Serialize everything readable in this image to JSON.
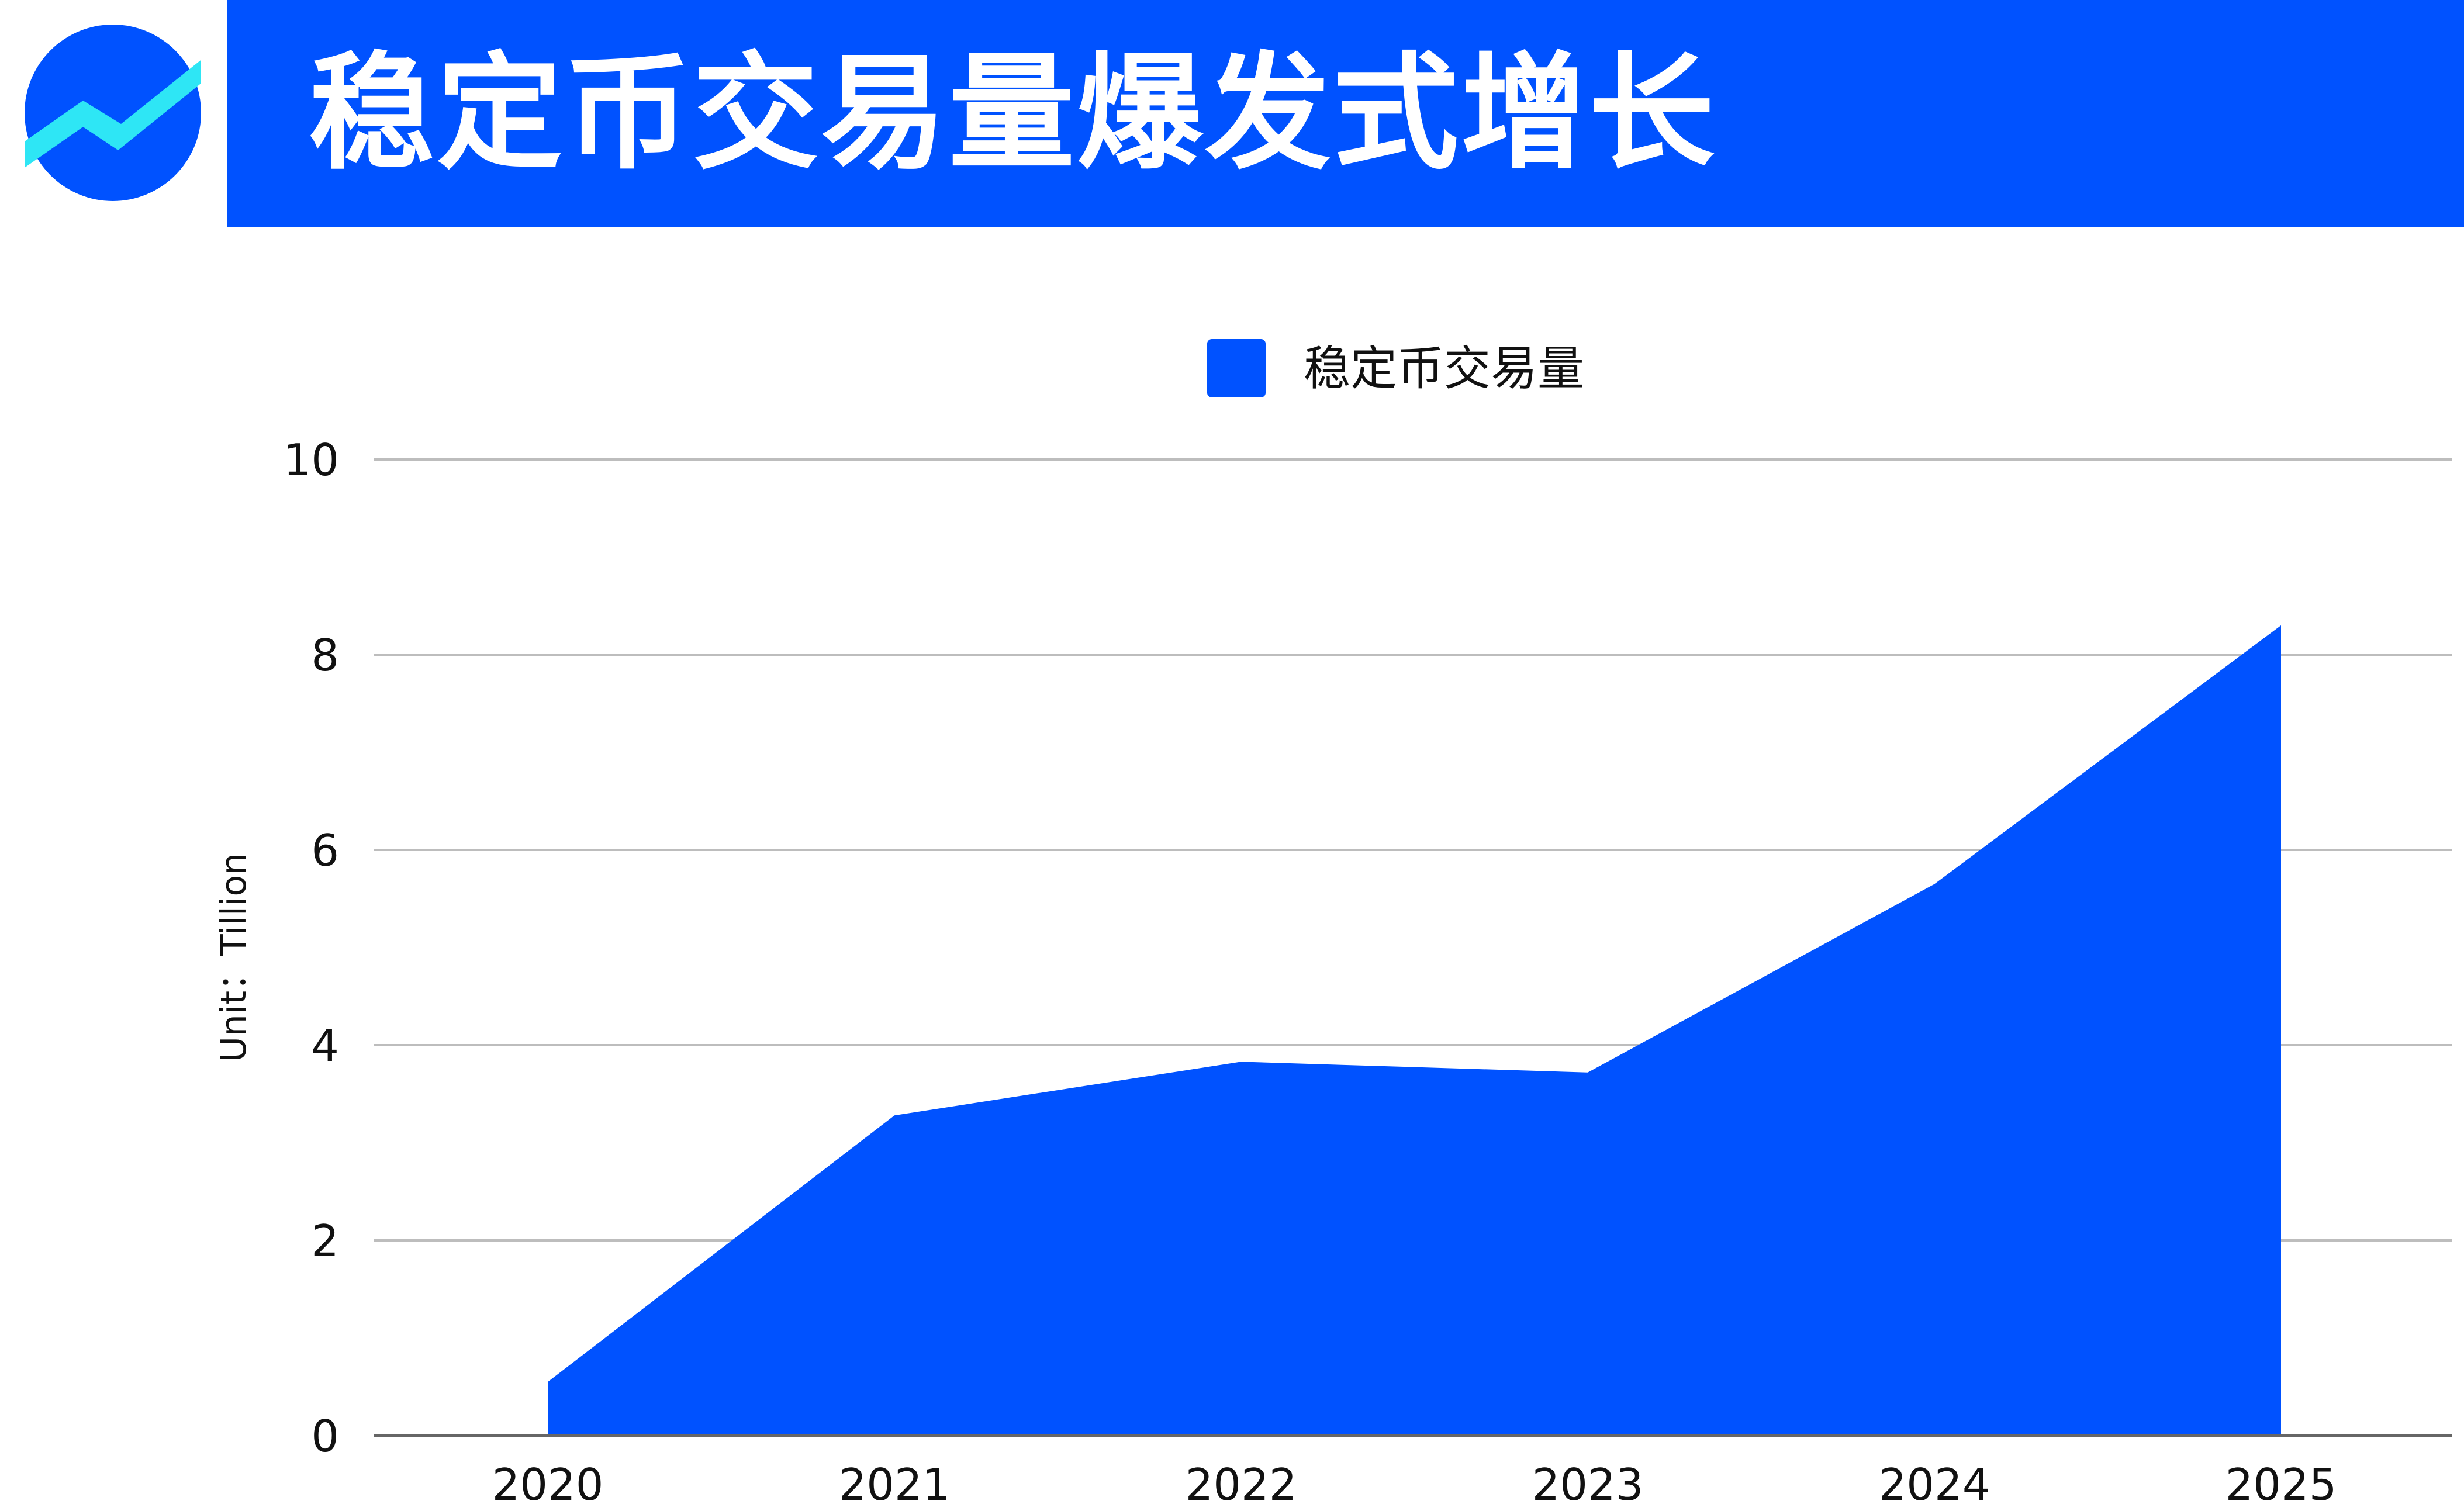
{
  "header": {
    "title": "稳定币交易量爆发式增长",
    "logo_icon": "trend-up-icon"
  },
  "colors": {
    "brand": "#0052FF",
    "logo_accent": "#2EE6F5",
    "grid": "#BDBDBD",
    "axis": "#666666"
  },
  "chart_data": {
    "type": "area",
    "title": "",
    "x": [
      "2020",
      "2021",
      "2022",
      "2023",
      "2024",
      "2025"
    ],
    "series": [
      {
        "name": "稳定币交易量",
        "values": [
          0.55,
          3.28,
          3.83,
          3.72,
          5.65,
          8.3
        ]
      }
    ],
    "xlabel": "",
    "ylabel": "Unit：Tillion",
    "ylim": [
      0,
      10
    ],
    "yticks": [
      "0",
      "2",
      "4",
      "6",
      "8",
      "10"
    ],
    "grid": true,
    "legend": "top-center"
  }
}
